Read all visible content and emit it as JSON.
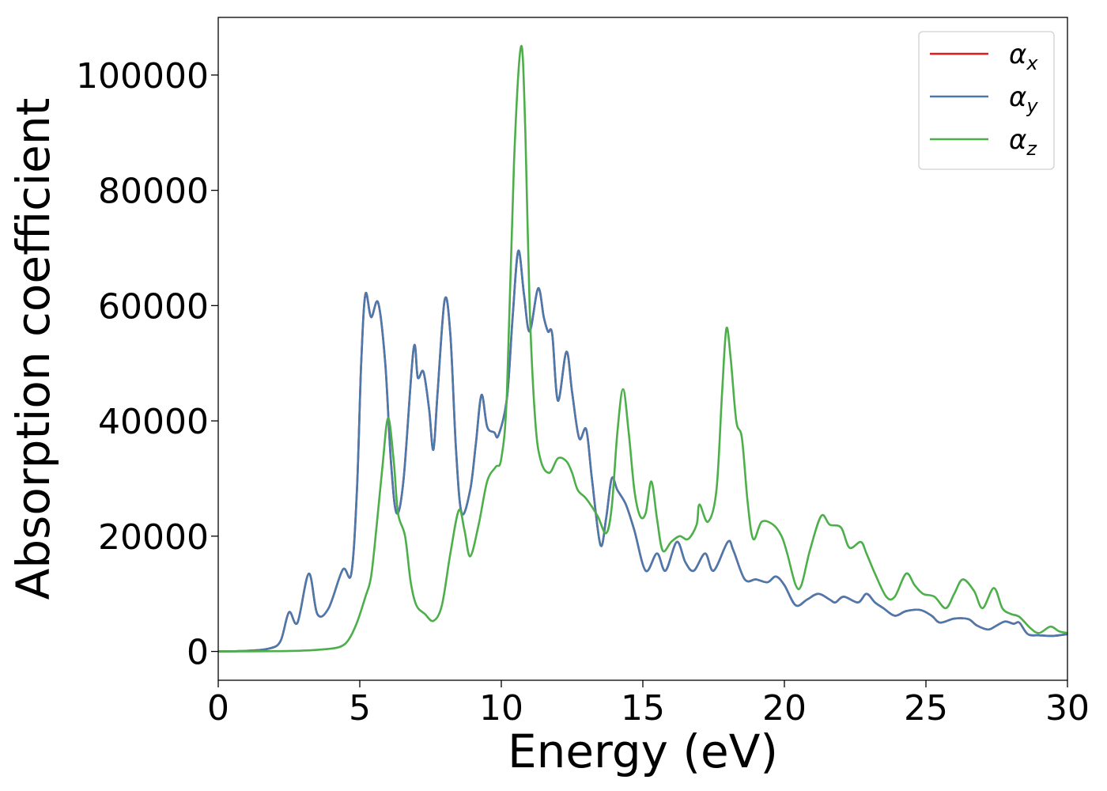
{
  "chart_data": {
    "type": "line",
    "title": "",
    "xlabel": "Energy (eV)",
    "ylabel": "Absorption coefficient",
    "xlim": [
      0,
      30
    ],
    "ylim": [
      -5000,
      110000
    ],
    "xticks": [
      0,
      5,
      10,
      15,
      20,
      25,
      30
    ],
    "xtick_labels": [
      "0",
      "5",
      "10",
      "15",
      "20",
      "25",
      "30"
    ],
    "yticks": [
      0,
      20000,
      40000,
      60000,
      80000,
      100000
    ],
    "ytick_labels": [
      "0",
      "20000",
      "40000",
      "60000",
      "80000",
      "100000"
    ],
    "grid": false,
    "legend_position": "top-right",
    "series": [
      {
        "name": "α_x",
        "legend_base": "α",
        "legend_sub": "x",
        "color": "#e41a1c",
        "points": [
          [
            0,
            0
          ],
          [
            1,
            100
          ],
          [
            1.8,
            500
          ],
          [
            2.2,
            1800
          ],
          [
            2.5,
            6800
          ],
          [
            2.8,
            5000
          ],
          [
            3.2,
            13500
          ],
          [
            3.5,
            6500
          ],
          [
            3.9,
            7500
          ],
          [
            4.4,
            14200
          ],
          [
            4.7,
            13500
          ],
          [
            4.9,
            28000
          ],
          [
            5.05,
            50000
          ],
          [
            5.2,
            62000
          ],
          [
            5.4,
            58000
          ],
          [
            5.65,
            60500
          ],
          [
            5.9,
            50000
          ],
          [
            6.1,
            33000
          ],
          [
            6.3,
            24000
          ],
          [
            6.55,
            30000
          ],
          [
            6.9,
            52500
          ],
          [
            7.05,
            47500
          ],
          [
            7.25,
            48500
          ],
          [
            7.45,
            42000
          ],
          [
            7.6,
            35000
          ],
          [
            7.75,
            45000
          ],
          [
            8.0,
            61000
          ],
          [
            8.2,
            55000
          ],
          [
            8.4,
            35000
          ],
          [
            8.6,
            24000
          ],
          [
            8.9,
            28000
          ],
          [
            9.1,
            36000
          ],
          [
            9.3,
            44500
          ],
          [
            9.5,
            39000
          ],
          [
            9.75,
            38000
          ],
          [
            9.9,
            37500
          ],
          [
            10.2,
            44000
          ],
          [
            10.4,
            58000
          ],
          [
            10.6,
            69500
          ],
          [
            10.8,
            62000
          ],
          [
            11.0,
            55500
          ],
          [
            11.3,
            63000
          ],
          [
            11.5,
            58000
          ],
          [
            11.65,
            55500
          ],
          [
            11.8,
            55000
          ],
          [
            12.0,
            43500
          ],
          [
            12.3,
            52000
          ],
          [
            12.5,
            45000
          ],
          [
            12.75,
            37000
          ],
          [
            13.0,
            38500
          ],
          [
            13.2,
            30000
          ],
          [
            13.5,
            18500
          ],
          [
            13.7,
            23000
          ],
          [
            13.9,
            30000
          ],
          [
            14.1,
            28000
          ],
          [
            14.4,
            25500
          ],
          [
            14.7,
            21000
          ],
          [
            15.1,
            14000
          ],
          [
            15.5,
            17000
          ],
          [
            15.8,
            14000
          ],
          [
            16.2,
            19000
          ],
          [
            16.5,
            15500
          ],
          [
            16.8,
            14000
          ],
          [
            17.2,
            17000
          ],
          [
            17.5,
            14000
          ],
          [
            18.0,
            19000
          ],
          [
            18.2,
            17500
          ],
          [
            18.6,
            12500
          ],
          [
            19.0,
            12500
          ],
          [
            19.4,
            12000
          ],
          [
            19.7,
            13000
          ],
          [
            20.0,
            11500
          ],
          [
            20.4,
            8000
          ],
          [
            20.8,
            9000
          ],
          [
            21.2,
            10000
          ],
          [
            21.6,
            9000
          ],
          [
            21.8,
            8500
          ],
          [
            22.1,
            9500
          ],
          [
            22.6,
            8500
          ],
          [
            22.9,
            10000
          ],
          [
            23.2,
            8500
          ],
          [
            23.5,
            7500
          ],
          [
            23.9,
            6200
          ],
          [
            24.3,
            7000
          ],
          [
            24.8,
            7200
          ],
          [
            25.2,
            6200
          ],
          [
            25.5,
            5000
          ],
          [
            26.0,
            5700
          ],
          [
            26.5,
            5600
          ],
          [
            26.8,
            4500
          ],
          [
            27.2,
            3800
          ],
          [
            27.5,
            4500
          ],
          [
            27.8,
            5200
          ],
          [
            28.1,
            4800
          ],
          [
            28.3,
            5000
          ],
          [
            28.6,
            3000
          ],
          [
            29.0,
            2800
          ],
          [
            29.5,
            2700
          ],
          [
            30,
            3000
          ]
        ]
      },
      {
        "name": "α_y",
        "legend_base": "α",
        "legend_sub": "y",
        "color": "#4a7aad",
        "points": [
          [
            0,
            0
          ],
          [
            1,
            100
          ],
          [
            1.8,
            500
          ],
          [
            2.2,
            1800
          ],
          [
            2.5,
            6800
          ],
          [
            2.8,
            5000
          ],
          [
            3.2,
            13500
          ],
          [
            3.5,
            6500
          ],
          [
            3.9,
            7500
          ],
          [
            4.4,
            14200
          ],
          [
            4.7,
            13500
          ],
          [
            4.9,
            28000
          ],
          [
            5.05,
            50000
          ],
          [
            5.2,
            62000
          ],
          [
            5.4,
            58000
          ],
          [
            5.65,
            60500
          ],
          [
            5.9,
            50000
          ],
          [
            6.1,
            33000
          ],
          [
            6.3,
            24000
          ],
          [
            6.55,
            30000
          ],
          [
            6.9,
            52500
          ],
          [
            7.05,
            47500
          ],
          [
            7.25,
            48500
          ],
          [
            7.45,
            42000
          ],
          [
            7.6,
            35000
          ],
          [
            7.75,
            45000
          ],
          [
            8.0,
            61000
          ],
          [
            8.2,
            55000
          ],
          [
            8.4,
            35000
          ],
          [
            8.6,
            24000
          ],
          [
            8.9,
            28000
          ],
          [
            9.1,
            36000
          ],
          [
            9.3,
            44500
          ],
          [
            9.5,
            39000
          ],
          [
            9.75,
            38000
          ],
          [
            9.9,
            37500
          ],
          [
            10.2,
            44000
          ],
          [
            10.4,
            58000
          ],
          [
            10.6,
            69500
          ],
          [
            10.8,
            62000
          ],
          [
            11.0,
            55500
          ],
          [
            11.3,
            63000
          ],
          [
            11.5,
            58000
          ],
          [
            11.65,
            55500
          ],
          [
            11.8,
            55000
          ],
          [
            12.0,
            43500
          ],
          [
            12.3,
            52000
          ],
          [
            12.5,
            45000
          ],
          [
            12.75,
            37000
          ],
          [
            13.0,
            38500
          ],
          [
            13.2,
            30000
          ],
          [
            13.5,
            18500
          ],
          [
            13.7,
            23000
          ],
          [
            13.9,
            30000
          ],
          [
            14.1,
            28000
          ],
          [
            14.4,
            25500
          ],
          [
            14.7,
            21000
          ],
          [
            15.1,
            14000
          ],
          [
            15.5,
            17000
          ],
          [
            15.8,
            14000
          ],
          [
            16.2,
            19000
          ],
          [
            16.5,
            15500
          ],
          [
            16.8,
            14000
          ],
          [
            17.2,
            17000
          ],
          [
            17.5,
            14000
          ],
          [
            18.0,
            19000
          ],
          [
            18.2,
            17500
          ],
          [
            18.6,
            12500
          ],
          [
            19.0,
            12500
          ],
          [
            19.4,
            12000
          ],
          [
            19.7,
            13000
          ],
          [
            20.0,
            11500
          ],
          [
            20.4,
            8000
          ],
          [
            20.8,
            9000
          ],
          [
            21.2,
            10000
          ],
          [
            21.6,
            9000
          ],
          [
            21.8,
            8500
          ],
          [
            22.1,
            9500
          ],
          [
            22.6,
            8500
          ],
          [
            22.9,
            10000
          ],
          [
            23.2,
            8500
          ],
          [
            23.5,
            7500
          ],
          [
            23.9,
            6200
          ],
          [
            24.3,
            7000
          ],
          [
            24.8,
            7200
          ],
          [
            25.2,
            6200
          ],
          [
            25.5,
            5000
          ],
          [
            26.0,
            5700
          ],
          [
            26.5,
            5600
          ],
          [
            26.8,
            4500
          ],
          [
            27.2,
            3800
          ],
          [
            27.5,
            4500
          ],
          [
            27.8,
            5200
          ],
          [
            28.1,
            4800
          ],
          [
            28.3,
            5000
          ],
          [
            28.6,
            3000
          ],
          [
            29.0,
            2800
          ],
          [
            29.5,
            2700
          ],
          [
            30,
            3000
          ]
        ]
      },
      {
        "name": "α_z",
        "legend_base": "α",
        "legend_sub": "z",
        "color": "#4daf4a",
        "points": [
          [
            0,
            0
          ],
          [
            2,
            50
          ],
          [
            3,
            150
          ],
          [
            3.8,
            400
          ],
          [
            4.3,
            800
          ],
          [
            4.6,
            2000
          ],
          [
            4.9,
            5000
          ],
          [
            5.2,
            9500
          ],
          [
            5.4,
            13000
          ],
          [
            5.6,
            22000
          ],
          [
            5.8,
            32000
          ],
          [
            6.0,
            40500
          ],
          [
            6.2,
            33000
          ],
          [
            6.35,
            24000
          ],
          [
            6.6,
            20000
          ],
          [
            6.8,
            12000
          ],
          [
            7.0,
            8000
          ],
          [
            7.3,
            6500
          ],
          [
            7.6,
            5300
          ],
          [
            7.9,
            8000
          ],
          [
            8.2,
            17000
          ],
          [
            8.5,
            24500
          ],
          [
            8.7,
            21000
          ],
          [
            8.9,
            16500
          ],
          [
            9.2,
            22000
          ],
          [
            9.5,
            29500
          ],
          [
            9.8,
            32000
          ],
          [
            10.0,
            33500
          ],
          [
            10.2,
            45000
          ],
          [
            10.45,
            85000
          ],
          [
            10.7,
            105000
          ],
          [
            10.85,
            90000
          ],
          [
            11.0,
            60000
          ],
          [
            11.2,
            40000
          ],
          [
            11.4,
            33000
          ],
          [
            11.7,
            31000
          ],
          [
            12.0,
            33500
          ],
          [
            12.3,
            33000
          ],
          [
            12.5,
            31000
          ],
          [
            12.7,
            28000
          ],
          [
            13.0,
            26500
          ],
          [
            13.4,
            23500
          ],
          [
            13.7,
            20500
          ],
          [
            13.9,
            25000
          ],
          [
            14.1,
            38000
          ],
          [
            14.3,
            45500
          ],
          [
            14.5,
            38000
          ],
          [
            14.7,
            28000
          ],
          [
            14.9,
            23500
          ],
          [
            15.1,
            24000
          ],
          [
            15.3,
            29500
          ],
          [
            15.5,
            23000
          ],
          [
            15.7,
            17500
          ],
          [
            16.0,
            19000
          ],
          [
            16.3,
            20000
          ],
          [
            16.6,
            19500
          ],
          [
            16.9,
            22000
          ],
          [
            17.0,
            25500
          ],
          [
            17.3,
            22500
          ],
          [
            17.6,
            28000
          ],
          [
            17.8,
            45000
          ],
          [
            17.95,
            56000
          ],
          [
            18.1,
            51000
          ],
          [
            18.3,
            40000
          ],
          [
            18.5,
            37000
          ],
          [
            18.7,
            26000
          ],
          [
            18.9,
            19500
          ],
          [
            19.2,
            22500
          ],
          [
            19.6,
            22000
          ],
          [
            19.9,
            20000
          ],
          [
            20.1,
            17000
          ],
          [
            20.4,
            11500
          ],
          [
            20.6,
            11500
          ],
          [
            20.9,
            17500
          ],
          [
            21.3,
            23500
          ],
          [
            21.6,
            22000
          ],
          [
            22.0,
            21500
          ],
          [
            22.3,
            18000
          ],
          [
            22.7,
            19000
          ],
          [
            22.9,
            17000
          ],
          [
            23.2,
            13500
          ],
          [
            23.6,
            9500
          ],
          [
            23.9,
            9500
          ],
          [
            24.3,
            13500
          ],
          [
            24.6,
            11500
          ],
          [
            24.9,
            10000
          ],
          [
            25.3,
            9500
          ],
          [
            25.7,
            7500
          ],
          [
            26.0,
            10000
          ],
          [
            26.3,
            12500
          ],
          [
            26.7,
            10500
          ],
          [
            27.0,
            7500
          ],
          [
            27.4,
            11000
          ],
          [
            27.7,
            7500
          ],
          [
            28.0,
            6500
          ],
          [
            28.3,
            6000
          ],
          [
            28.7,
            4000
          ],
          [
            29.0,
            3200
          ],
          [
            29.4,
            4300
          ],
          [
            29.7,
            3500
          ],
          [
            30,
            3200
          ]
        ]
      }
    ]
  }
}
